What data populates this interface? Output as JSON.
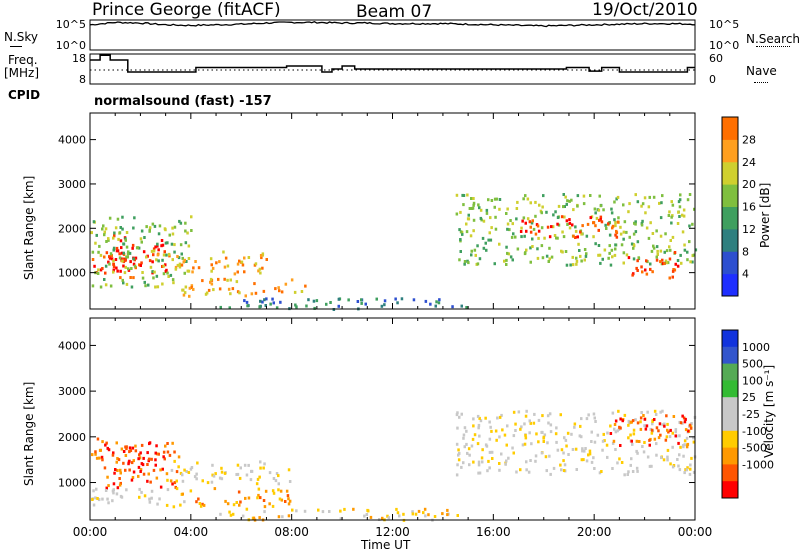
{
  "header": {
    "station": "Prince George (fitACF)",
    "beam": "Beam 07",
    "date": "19/Oct/2010"
  },
  "side_labels": {
    "nsky": "N.Sky",
    "freq": "Freq.",
    "mhz": "[MHz]",
    "cpid": "CPID",
    "nsearch": "N.Search",
    "nave": "Nave"
  },
  "cpid_text": "normalsound (fast) -157",
  "colors": {
    "power": [
      "#1f2fff",
      "#2d4fcf",
      "#2f7f7f",
      "#3f9f5f",
      "#7fbf3f",
      "#cfcf2f",
      "#ff9f1f",
      "#ff6f00",
      "#ff3f00",
      "#ff0000"
    ],
    "velocity": [
      "#ff0000",
      "#ff5500",
      "#ff9900",
      "#ffcc00",
      "#c8c8c8",
      "#c8c8c8",
      "#33bb33",
      "#55aa55",
      "#3355cc",
      "#1133dd"
    ],
    "ground": "#c8c8c8"
  },
  "chart_data": [
    {
      "type": "line",
      "panel": "noise",
      "left_ticks": [
        "10^5",
        "10^0"
      ],
      "right_ticks": [
        "10^5",
        "10^0"
      ],
      "x_range": [
        0,
        24
      ],
      "series": [
        {
          "name": "N.Sky",
          "values": [
            4.2,
            4.6,
            4.5,
            4.2,
            4.1,
            4.2,
            4.3,
            4.5,
            4.6,
            4.6,
            4.5,
            4.5,
            4.4,
            4.4,
            4.4,
            4.3,
            4.2,
            4.1,
            4.0,
            4.1,
            4.2,
            4.3,
            4.4,
            4.4,
            4.3
          ]
        }
      ]
    },
    {
      "type": "line",
      "panel": "frequency_nave",
      "left_ticks": [
        "18",
        "8"
      ],
      "right_ticks": [
        "60",
        "0"
      ],
      "x_range": [
        0,
        24
      ],
      "series": [
        {
          "name": "Freq.",
          "values": [
            [
              0,
              16
            ],
            [
              0.4,
              17.6
            ],
            [
              0.8,
              16
            ],
            [
              1.5,
              12
            ],
            [
              4.2,
              13.5
            ],
            [
              7.8,
              14
            ],
            [
              9.2,
              12
            ],
            [
              9.6,
              13
            ],
            [
              10.0,
              14
            ],
            [
              10.5,
              13
            ],
            [
              12,
              13
            ],
            [
              15.2,
              13
            ],
            [
              18.2,
              13
            ],
            [
              18.9,
              13.5
            ],
            [
              19.8,
              12.3
            ],
            [
              20.3,
              13.5
            ],
            [
              21.0,
              12
            ],
            [
              23.7,
              13.5
            ],
            [
              24,
              13.5
            ]
          ]
        },
        {
          "name": "Nave",
          "values": [
            [
              0,
              28
            ],
            [
              24,
              28
            ]
          ]
        }
      ]
    },
    {
      "type": "heatmap",
      "panel": "power",
      "ylabel": "Slant Range [km]",
      "y_ticks": [
        1000,
        2000,
        3000,
        4000
      ],
      "y_range": [
        180,
        4600
      ],
      "colorbar_label": "Power [dB]",
      "colorbar_ticks": [
        4,
        8,
        12,
        16,
        20,
        24,
        28
      ],
      "regions": [
        {
          "t": [
            0.0,
            2.0
          ],
          "r": [
            900,
            1500
          ],
          "level": 8
        },
        {
          "t": [
            0.8,
            3.0
          ],
          "r": [
            1000,
            1900
          ],
          "level": 9
        },
        {
          "t": [
            0.0,
            4.0
          ],
          "r": [
            700,
            2300
          ],
          "level": 4
        },
        {
          "t": [
            2.5,
            7.0
          ],
          "r": [
            1000,
            1500
          ],
          "level": 6
        },
        {
          "t": [
            3.5,
            8.5
          ],
          "r": [
            500,
            900
          ],
          "level": 6
        },
        {
          "t": [
            5.0,
            15.0
          ],
          "r": [
            200,
            450
          ],
          "level": 2
        },
        {
          "t": [
            14.5,
            24.0
          ],
          "r": [
            1200,
            2800
          ],
          "level": 4
        },
        {
          "t": [
            17.0,
            21.0
          ],
          "r": [
            1800,
            2300
          ],
          "level": 8
        },
        {
          "t": [
            21.3,
            23.3
          ],
          "r": [
            900,
            1500
          ],
          "level": 8
        }
      ]
    },
    {
      "type": "heatmap",
      "panel": "velocity",
      "ylabel": "Slant Range [km]",
      "y_ticks": [
        1000,
        2000,
        3000,
        4000
      ],
      "y_range": [
        180,
        4600
      ],
      "x_ticks": [
        "00:00",
        "04:00",
        "08:00",
        "12:00",
        "16:00",
        "20:00",
        "00:00"
      ],
      "xlabel": "Time UT",
      "colorbar_label": "Velocity [m s⁻¹]",
      "colorbar_ticks": [
        1000,
        500,
        100,
        25,
        -25,
        -100,
        -500,
        -1000
      ],
      "regions": [
        {
          "t": [
            0.0,
            3.5
          ],
          "r": [
            900,
            2000
          ],
          "level": 1
        },
        {
          "t": [
            1.0,
            3.0
          ],
          "r": [
            1400,
            1900
          ],
          "level": 0
        },
        {
          "t": [
            0.0,
            4.0
          ],
          "r": [
            500,
            900
          ],
          "level": 4
        },
        {
          "t": [
            3.0,
            8.0
          ],
          "r": [
            1000,
            1500
          ],
          "level": 4
        },
        {
          "t": [
            3.5,
            8.0
          ],
          "r": [
            500,
            900
          ],
          "level": 2
        },
        {
          "t": [
            5.0,
            15.0
          ],
          "r": [
            200,
            450
          ],
          "level": 3
        },
        {
          "t": [
            14.5,
            24.0
          ],
          "r": [
            1200,
            2600
          ],
          "level": 4
        },
        {
          "t": [
            20.5,
            24.0
          ],
          "r": [
            1800,
            2500
          ],
          "level": 1
        }
      ]
    }
  ]
}
